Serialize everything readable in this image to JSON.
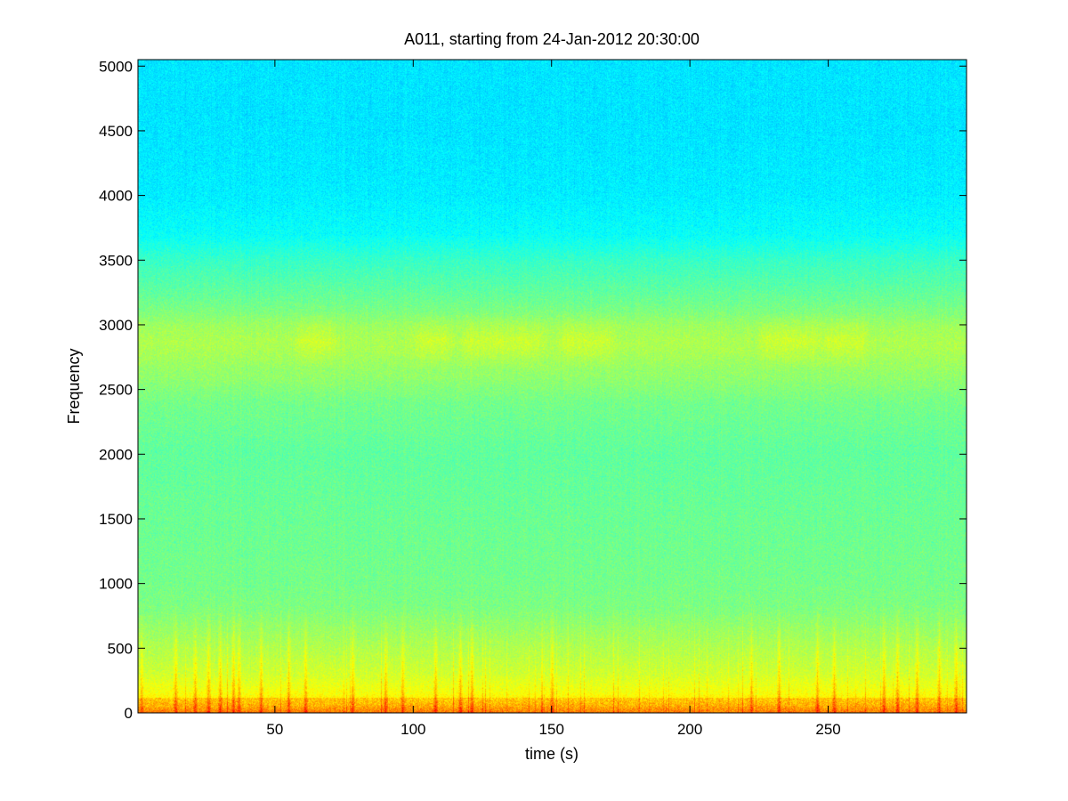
{
  "chart_data": {
    "type": "heatmap",
    "title": "A011, starting from 24-Jan-2012 20:30:00",
    "xlabel": "time (s)",
    "ylabel": "Frequency",
    "xlim": [
      0.5,
      300
    ],
    "ylim": [
      0,
      5050
    ],
    "x_ticks": [
      50,
      100,
      150,
      200,
      250
    ],
    "y_ticks": [
      0,
      500,
      1000,
      1500,
      2000,
      2500,
      3000,
      3500,
      4000,
      4500,
      5000
    ],
    "grid": false,
    "legend": "none",
    "colormap": "jet",
    "colormap_stops": [
      "#00007f",
      "#0000ff",
      "#00ffff",
      "#ffff00",
      "#ff0000",
      "#7f0000"
    ],
    "intensity_profile": {
      "description_units": "normalized colormap level 0-1 versus frequency",
      "frequency": [
        0,
        60,
        150,
        300,
        500,
        800,
        1000,
        1500,
        2000,
        2400,
        2600,
        2800,
        3000,
        3200,
        3500,
        3700,
        4000,
        4500,
        5000
      ],
      "level": [
        0.72,
        0.66,
        0.62,
        0.58,
        0.55,
        0.5,
        0.49,
        0.48,
        0.47,
        0.49,
        0.52,
        0.53,
        0.52,
        0.48,
        0.43,
        0.38,
        0.36,
        0.35,
        0.35
      ]
    },
    "bright_band": {
      "frequency_range": [
        2650,
        3100
      ],
      "strong_times": [
        [
          60,
          70
        ],
        [
          103,
          112
        ],
        [
          120,
          145
        ],
        [
          155,
          170
        ],
        [
          228,
          245
        ],
        [
          250,
          262
        ]
      ]
    },
    "transient_events_s": [
      14,
      21,
      26,
      30,
      35,
      37,
      45,
      55,
      61,
      78,
      90,
      96,
      108,
      117,
      121,
      150,
      222,
      232,
      246,
      252,
      270,
      275,
      282,
      290,
      296
    ]
  }
}
